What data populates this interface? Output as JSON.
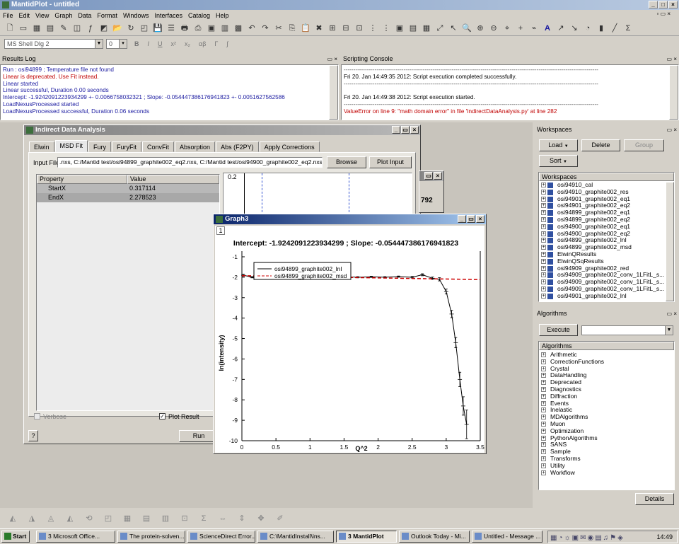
{
  "app": {
    "title": "MantidPlot - untitled"
  },
  "menu": [
    "File",
    "Edit",
    "View",
    "Graph",
    "Data",
    "Format",
    "Windows",
    "Interfaces",
    "Catalog",
    "Help"
  ],
  "format_bar": {
    "font": "MS Shell Dlg 2",
    "size": "0",
    "bold": "B",
    "italic": "I",
    "underline": "U",
    "superscript": "x²",
    "subscript": "x₂",
    "alpha": "αβ",
    "gamma": "Γ",
    "integral": "∫"
  },
  "results_log": {
    "title": "Results Log",
    "lines": [
      {
        "text": "Run : osi94899 ; Temperature file not found",
        "color": "blue"
      },
      {
        "text": "Linear is deprecated. Use Fit instead.",
        "color": "red"
      },
      {
        "text": "Linear started",
        "color": "blue"
      },
      {
        "text": "Linear successful, Duration 0.00 seconds",
        "color": "blue"
      },
      {
        "text": "Intercept: -1.9242091223934299 +- 0.00667580323​21 ; Slope: -0.054447386176941823 +- 0.0051627562586",
        "color": "blue"
      },
      {
        "text": "LoadNexusProcessed started",
        "color": "blue"
      },
      {
        "text": "LoadNexusProcessed successful, Duration 0.06 seconds",
        "color": "blue"
      }
    ]
  },
  "scripting": {
    "title": "Scripting Console",
    "lines": [
      {
        "text": "------------------------------------------------------------------------------------------------------------------------------------",
        "color": "gray"
      },
      {
        "text": "Fri 20. Jan 14:49:35 2012: Script execution completed successfully.",
        "color": "black"
      },
      {
        "text": "------------------------------------------------------------------------------------------------------------------------------------",
        "color": "gray"
      },
      {
        "text": "",
        "color": "black"
      },
      {
        "text": "Fri 20. Jan 14:49:38 2012: Script execution started.",
        "color": "black"
      },
      {
        "text": "------------------------------------------------------------------------------------------------------------------------------------",
        "color": "gray"
      },
      {
        "text": "ValueError on line 9: \"math domain error\" in file 'IndirectDataAnalysis.py' at line 282",
        "color": "red"
      }
    ]
  },
  "ida": {
    "title": "Indirect Data Analysis",
    "tabs": [
      "Elwin",
      "MSD Fit",
      "Fury",
      "FuryFit",
      "ConvFit",
      "Absorption",
      "Abs (F2PY)",
      "Apply Corrections"
    ],
    "input_label": "Input File",
    "input_value": ".nxs, C:/Mantid test/osi94899_graphite002_eq2.nxs, C:/Mantid test/osi94900_graphite002_eq2.nxs",
    "browse": "Browse",
    "plot_input": "Plot Input",
    "prop_header": "Property",
    "value_header": "Value",
    "props": [
      {
        "name": "StartX",
        "value": "0.317114"
      },
      {
        "name": "EndX",
        "value": "2.278523"
      }
    ],
    "verbose": "Verbose",
    "plot_result": "Plot Result",
    "help": "?",
    "run": "Run",
    "preview_top": "0.2",
    "preview_num": "792"
  },
  "graph": {
    "title": "Graph3",
    "layer": "1",
    "heading": "Intercept: -1.9242091223934299 ; Slope: -0.054447386176941823"
  },
  "chart_data": {
    "type": "line",
    "title": "Intercept: -1.9242091223934299 ; Slope: -0.054447386176941823",
    "xlabel": "Q^2",
    "ylabel": "ln(intensity)",
    "xlim": [
      0,
      3.5
    ],
    "ylim": [
      -10,
      -1
    ],
    "xticks": [
      "0",
      "0.5",
      "1",
      "1.5",
      "2",
      "2.5",
      "3",
      "3.5"
    ],
    "yticks": [
      "-1",
      "-2",
      "-3",
      "-4",
      "-5",
      "-6",
      "-7",
      "-8",
      "-9",
      "-10"
    ],
    "legend": "top-left",
    "series": [
      {
        "name": "osi94899_graphite002_lnI",
        "color": "#000000",
        "x": [
          0.02,
          0.15,
          0.3,
          0.5,
          0.7,
          0.9,
          1.1,
          1.3,
          1.5,
          1.7,
          1.9,
          2.1,
          2.3,
          2.5,
          2.65,
          2.8,
          2.9,
          3.0,
          3.08,
          3.14,
          3.2,
          3.25,
          3.3
        ],
        "y": [
          -1.9,
          -2.0,
          -1.97,
          -1.98,
          -1.97,
          -2.0,
          -1.98,
          -2.0,
          -1.98,
          -2.0,
          -1.98,
          -2.0,
          -1.97,
          -2.0,
          -1.88,
          -2.05,
          -2.1,
          -2.7,
          -3.8,
          -5.2,
          -7.0,
          -8.3,
          -9.2
        ],
        "err": [
          0.05,
          0.03,
          0.03,
          0.03,
          0.03,
          0.03,
          0.03,
          0.03,
          0.03,
          0.03,
          0.03,
          0.03,
          0.03,
          0.04,
          0.05,
          0.06,
          0.08,
          0.12,
          0.18,
          0.25,
          0.35,
          0.45,
          0.7
        ]
      },
      {
        "name": "osi94899_graphite002_msd",
        "color": "#cc0000",
        "dashed": true,
        "x": [
          0,
          3.5
        ],
        "y": [
          -1.924,
          -2.115
        ]
      }
    ]
  },
  "workspaces": {
    "title": "Workspaces",
    "load": "Load",
    "delete": "Delete",
    "group": "Group",
    "sort": "Sort",
    "header": "Workspaces",
    "items": [
      "osi94910_cal",
      "osi94910_graphite002_res",
      "osi94901_graphite002_eq1",
      "osi94901_graphite002_eq2",
      "osi94899_graphite002_eq1",
      "osi94899_graphite002_eq2",
      "osi94900_graphite002_eq1",
      "osi94900_graphite002_eq2",
      "osi94899_graphite002_lnI",
      "osi94899_graphite002_msd",
      "ElwinQResults",
      "ElwinQSqResults",
      "osi94909_graphite002_red",
      "osi94909_graphite002_conv_1LFitL_s...",
      "osi94909_graphite002_conv_1LFitL_s...",
      "osi94909_graphite002_conv_1LFitL_s...",
      "osi94901_graphite002_lnI"
    ]
  },
  "algorithms": {
    "title": "Algorithms",
    "execute": "Execute",
    "header": "Algorithms",
    "details": "Details",
    "items": [
      "Arithmetic",
      "CorrectionFunctions",
      "Crystal",
      "DataHandling",
      "Deprecated",
      "Diagnostics",
      "Diffraction",
      "Events",
      "Inelastic",
      "MDAlgorithms",
      "Muon",
      "Optimization",
      "PythonAlgorithms",
      "SANS",
      "Sample",
      "Transforms",
      "Utility",
      "Workflow"
    ]
  },
  "taskbar": {
    "start": "Start",
    "clock": "14:49",
    "tasks": [
      {
        "label": "3 Microsoft Office...",
        "w": 112
      },
      {
        "label": "The protein-solven...",
        "w": 96
      },
      {
        "label": "ScienceDirect Error...",
        "w": 96
      },
      {
        "label": "C:\\MantidInstall\\ins...",
        "w": 108
      },
      {
        "label": "3 MantidPlot",
        "w": 86,
        "active": true
      },
      {
        "label": "Outlook Today - Mi...",
        "w": 100
      },
      {
        "label": "Untitled - Message ...",
        "w": 100
      }
    ]
  }
}
